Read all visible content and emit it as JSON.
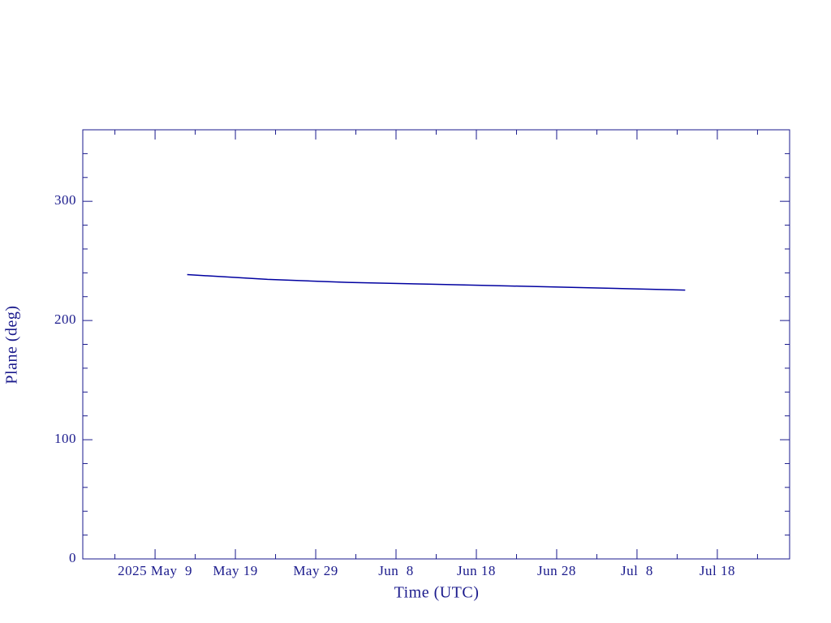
{
  "chart_data": {
    "type": "line",
    "x_label": "Time (UTC)",
    "y_label": "Plane (deg)",
    "x": [
      "2025-05-13",
      "2025-05-23",
      "2025-06-02",
      "2025-06-12",
      "2025-06-22",
      "2025-07-02",
      "2025-07-14"
    ],
    "series": [
      {
        "color": "#0000a0",
        "values": [
          238.5,
          234.5,
          232,
          230.5,
          229,
          227.5,
          225.5
        ]
      }
    ],
    "xlim": [
      "2025-04-30",
      "2025-07-27"
    ],
    "xticks": [
      {
        "value": "2025-05-09",
        "label": "2025 May  9"
      },
      {
        "value": "2025-05-19",
        "label": "May 19"
      },
      {
        "value": "2025-05-29",
        "label": "May 29"
      },
      {
        "value": "2025-06-08",
        "label": "Jun  8"
      },
      {
        "value": "2025-06-18",
        "label": "Jun 18"
      },
      {
        "value": "2025-06-28",
        "label": "Jun 28"
      },
      {
        "value": "2025-07-08",
        "label": "Jul  8"
      },
      {
        "value": "2025-07-18",
        "label": "Jul 18"
      }
    ],
    "xminorticks": [
      "2025-05-04",
      "2025-05-14",
      "2025-05-24",
      "2025-06-03",
      "2025-06-13",
      "2025-06-23",
      "2025-07-03",
      "2025-07-13",
      "2025-07-23"
    ],
    "ylim": [
      0,
      360
    ],
    "yticks": [
      0,
      100,
      200,
      300
    ],
    "yminorticks": [
      20,
      40,
      60,
      80,
      120,
      140,
      160,
      180,
      220,
      240,
      260,
      280,
      320,
      340
    ],
    "axis_color": "#1a1a8c"
  }
}
